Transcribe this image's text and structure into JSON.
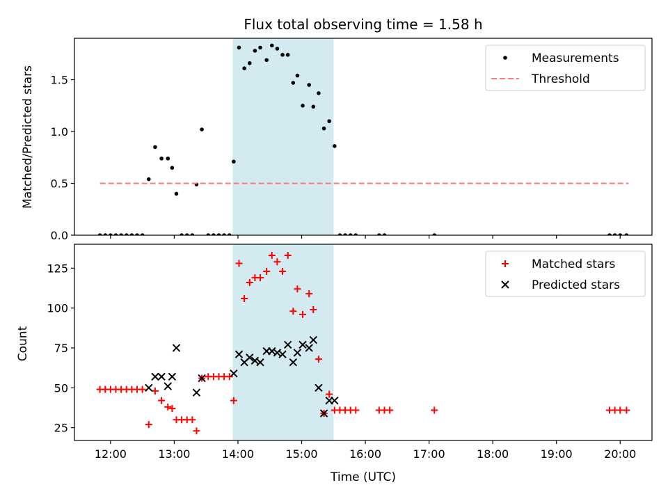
{
  "chart_data": [
    {
      "type": "scatter",
      "title": "Flux total observing time = 1.58 h",
      "xlabel": "",
      "ylabel": "Matched/Predicted stars",
      "xlim": [
        "11:26",
        "20:30"
      ],
      "ylim": [
        0,
        1.9
      ],
      "yticks": [
        0.0,
        0.5,
        1.0,
        1.5
      ],
      "ytick_labels": [
        "0.0",
        "0.5",
        "1.0",
        "1.5"
      ],
      "xtick_labels_shown": false,
      "highlight_span": [
        "13:55",
        "15:30"
      ],
      "highlight_color": "#d2eaf0",
      "legend_position": "top-right",
      "series": [
        {
          "name": "Measurements",
          "marker": "dot",
          "color": "#000000",
          "points": [
            [
              "11:50",
              0
            ],
            [
              "11:55",
              0
            ],
            [
              "12:00",
              0
            ],
            [
              "12:05",
              0
            ],
            [
              "12:10",
              0
            ],
            [
              "12:15",
              0
            ],
            [
              "12:20",
              0
            ],
            [
              "12:25",
              0
            ],
            [
              "12:30",
              0
            ],
            [
              "12:36",
              0.54
            ],
            [
              "12:42",
              0.85
            ],
            [
              "12:48",
              0.74
            ],
            [
              "12:54",
              0.74
            ],
            [
              "12:58",
              0.65
            ],
            [
              "13:02",
              0.4
            ],
            [
              "13:07",
              0
            ],
            [
              "13:12",
              0
            ],
            [
              "13:17",
              0
            ],
            [
              "13:21",
              0.49
            ],
            [
              "13:26",
              1.02
            ],
            [
              "13:32",
              0
            ],
            [
              "13:37",
              0
            ],
            [
              "13:42",
              0
            ],
            [
              "13:47",
              0
            ],
            [
              "13:52",
              0
            ],
            [
              "13:56",
              0.71
            ],
            [
              "14:01",
              1.81
            ],
            [
              "14:06",
              1.61
            ],
            [
              "14:11",
              1.66
            ],
            [
              "14:16",
              1.78
            ],
            [
              "14:21",
              1.81
            ],
            [
              "14:27",
              1.69
            ],
            [
              "14:32",
              1.83
            ],
            [
              "14:37",
              1.8
            ],
            [
              "14:42",
              1.74
            ],
            [
              "14:47",
              1.74
            ],
            [
              "14:52",
              1.47
            ],
            [
              "14:56",
              1.54
            ],
            [
              "15:01",
              1.25
            ],
            [
              "15:07",
              1.45
            ],
            [
              "15:11",
              1.24
            ],
            [
              "15:16",
              1.37
            ],
            [
              "15:21",
              1.03
            ],
            [
              "15:26",
              1.1
            ],
            [
              "15:31",
              0.86
            ],
            [
              "15:36",
              0
            ],
            [
              "15:41",
              0
            ],
            [
              "15:46",
              0
            ],
            [
              "15:51",
              0
            ],
            [
              "16:13",
              0
            ],
            [
              "16:18",
              0
            ],
            [
              "17:05",
              0
            ],
            [
              "19:50",
              0
            ],
            [
              "19:55",
              0
            ],
            [
              "20:00",
              0
            ],
            [
              "20:06",
              0
            ]
          ]
        },
        {
          "name": "Threshold",
          "style": "dashed-line",
          "color": "#ff7b7b",
          "points": [
            [
              "11:50",
              0.5
            ],
            [
              "20:08",
              0.5
            ]
          ]
        }
      ]
    },
    {
      "type": "scatter",
      "title": "",
      "xlabel": "Time (UTC)",
      "ylabel": "Count",
      "xlim": [
        "11:26",
        "20:30"
      ],
      "ylim": [
        17,
        140
      ],
      "yticks": [
        25,
        50,
        75,
        100,
        125
      ],
      "ytick_labels": [
        "25",
        "50",
        "75",
        "100",
        "125"
      ],
      "xticks": [
        "12:00",
        "13:00",
        "14:00",
        "15:00",
        "16:00",
        "17:00",
        "18:00",
        "19:00",
        "20:00"
      ],
      "highlight_span": [
        "13:55",
        "15:30"
      ],
      "highlight_color": "#d2eaf0",
      "legend_position": "top-right",
      "series": [
        {
          "name": "Matched stars",
          "marker": "plus",
          "color": "#ff0000",
          "points": [
            [
              "11:50",
              49
            ],
            [
              "11:55",
              49
            ],
            [
              "12:00",
              49
            ],
            [
              "12:05",
              49
            ],
            [
              "12:10",
              49
            ],
            [
              "12:15",
              49
            ],
            [
              "12:20",
              49
            ],
            [
              "12:25",
              49
            ],
            [
              "12:30",
              49
            ],
            [
              "12:36",
              27
            ],
            [
              "12:42",
              48
            ],
            [
              "12:48",
              42
            ],
            [
              "12:54",
              38
            ],
            [
              "12:58",
              37
            ],
            [
              "13:02",
              30
            ],
            [
              "13:07",
              30
            ],
            [
              "13:12",
              30
            ],
            [
              "13:17",
              30
            ],
            [
              "13:21",
              23
            ],
            [
              "13:26",
              56
            ],
            [
              "13:32",
              57
            ],
            [
              "13:37",
              57
            ],
            [
              "13:42",
              57
            ],
            [
              "13:47",
              57
            ],
            [
              "13:52",
              57
            ],
            [
              "13:56",
              42
            ],
            [
              "14:01",
              128
            ],
            [
              "14:06",
              106
            ],
            [
              "14:11",
              116
            ],
            [
              "14:16",
              119
            ],
            [
              "14:21",
              119
            ],
            [
              "14:27",
              123
            ],
            [
              "14:32",
              133
            ],
            [
              "14:37",
              129
            ],
            [
              "14:42",
              123
            ],
            [
              "14:47",
              133
            ],
            [
              "14:52",
              98
            ],
            [
              "14:56",
              112
            ],
            [
              "15:01",
              96
            ],
            [
              "15:07",
              109
            ],
            [
              "15:11",
              99
            ],
            [
              "15:16",
              68
            ],
            [
              "15:21",
              34
            ],
            [
              "15:26",
              46
            ],
            [
              "15:31",
              36
            ],
            [
              "15:36",
              36
            ],
            [
              "15:41",
              36
            ],
            [
              "15:46",
              36
            ],
            [
              "15:51",
              36
            ],
            [
              "16:13",
              36
            ],
            [
              "16:18",
              36
            ],
            [
              "16:23",
              36
            ],
            [
              "17:05",
              36
            ],
            [
              "19:50",
              36
            ],
            [
              "19:55",
              36
            ],
            [
              "20:00",
              36
            ],
            [
              "20:06",
              36
            ]
          ]
        },
        {
          "name": "Predicted stars",
          "marker": "x",
          "color": "#000000",
          "points": [
            [
              "12:36",
              50
            ],
            [
              "12:42",
              57
            ],
            [
              "12:48",
              57
            ],
            [
              "12:54",
              51
            ],
            [
              "12:58",
              57
            ],
            [
              "13:02",
              75
            ],
            [
              "13:21",
              47
            ],
            [
              "13:26",
              56
            ],
            [
              "13:56",
              59
            ],
            [
              "14:01",
              71
            ],
            [
              "14:06",
              66
            ],
            [
              "14:11",
              69
            ],
            [
              "14:16",
              67
            ],
            [
              "14:21",
              66
            ],
            [
              "14:27",
              73
            ],
            [
              "14:32",
              73
            ],
            [
              "14:37",
              72
            ],
            [
              "14:42",
              71
            ],
            [
              "14:47",
              77
            ],
            [
              "14:52",
              66
            ],
            [
              "14:56",
              72
            ],
            [
              "15:01",
              77
            ],
            [
              "15:07",
              75
            ],
            [
              "15:11",
              80
            ],
            [
              "15:16",
              50
            ],
            [
              "15:21",
              34
            ],
            [
              "15:26",
              42
            ],
            [
              "15:31",
              42
            ]
          ]
        }
      ]
    }
  ]
}
